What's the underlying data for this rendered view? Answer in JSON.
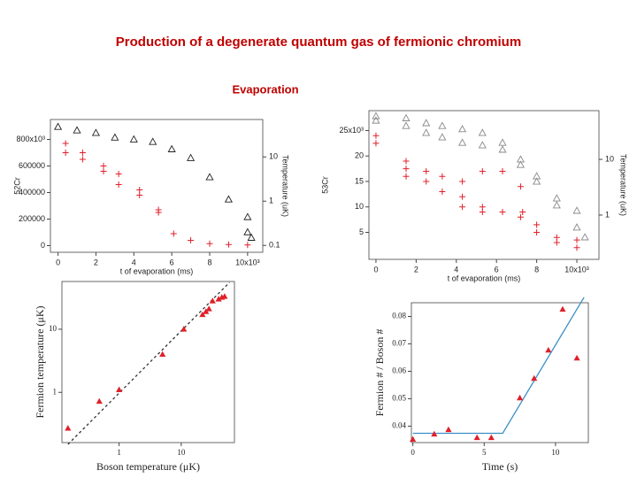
{
  "title": "Production of a degenerate quantum gas of fermionic chromium",
  "subtitle": "Evaporation",
  "chart_data": [
    {
      "type": "scatter",
      "x_label": "t of evaporation (ms)",
      "y_label": "52Cr",
      "y2_label": "Temperature (uK)",
      "xlim": [
        -400,
        10800
      ],
      "ylim": [
        -50000,
        950000
      ],
      "y2lim": [
        0.07,
        70
      ],
      "y2log": true,
      "xticks": [
        0,
        {
          "value": 2000,
          "label": "2"
        },
        {
          "value": 4000,
          "label": "4"
        },
        {
          "value": 6000,
          "label": "6"
        },
        {
          "value": 8000,
          "label": "8"
        },
        {
          "value": 10000,
          "label": "10x10³"
        }
      ],
      "yticks": [
        0,
        200000,
        400000,
        600000,
        {
          "value": 800000,
          "label": "800x10³"
        }
      ],
      "y2ticks": [
        0.1,
        1,
        10
      ],
      "series": [
        {
          "marker": "plus",
          "color": "#e0202a",
          "x": [
            400,
            400,
            1300,
            1300,
            2400,
            2400,
            3200,
            3200,
            4300,
            4300,
            5300,
            5300,
            6100,
            7000,
            8000,
            9000,
            10000
          ],
          "values": [
            770000,
            700000,
            700000,
            650000,
            600000,
            560000,
            540000,
            460000,
            420000,
            380000,
            270000,
            250000,
            90000,
            40000,
            15000,
            8000,
            5000
          ]
        },
        {
          "marker": "triangle",
          "color": "#222222",
          "axis": "y2",
          "x": [
            0,
            1000,
            2000,
            3000,
            4000,
            5000,
            6000,
            7000,
            8000,
            9000,
            10000,
            10000,
            10200
          ],
          "values": [
            48,
            40,
            35,
            27.5,
            25,
            22,
            15,
            9.5,
            3.5,
            1.1,
            0.44,
            0.2,
            0.15
          ]
        }
      ]
    },
    {
      "type": "scatter",
      "x_label": "t of evaporation (ms)",
      "y_label": "53Cr",
      "y2_label": "Temperature (uK)",
      "xlim": [
        -350,
        11100
      ],
      "ylim": [
        -300,
        28900
      ],
      "y2lim": [
        0.16,
        75
      ],
      "y2log": true,
      "xticks": [
        0,
        {
          "value": 2000,
          "label": "2"
        },
        {
          "value": 4000,
          "label": "4"
        },
        {
          "value": 6000,
          "label": "6"
        },
        {
          "value": 8000,
          "label": "8"
        },
        {
          "value": 10000,
          "label": "10x10³"
        }
      ],
      "yticks": [
        {
          "value": 5000,
          "label": "5"
        },
        {
          "value": 10000,
          "label": "10"
        },
        {
          "value": 15000,
          "label": "15"
        },
        {
          "value": 20000,
          "label": "20"
        },
        {
          "value": 25000,
          "label": "25x10³"
        }
      ],
      "y2ticks": [
        1,
        10
      ],
      "series": [
        {
          "marker": "plus",
          "color": "#e0202a",
          "x": [
            0,
            0,
            1500,
            1500,
            1500,
            2500,
            2500,
            3300,
            3300,
            4300,
            4300,
            4300,
            5300,
            5300,
            5300,
            6300,
            6300,
            7200,
            7200,
            7300,
            8000,
            8000,
            9000,
            9000,
            10000,
            10000
          ],
          "values": [
            22500,
            24000,
            19000,
            17500,
            16000,
            17000,
            15000,
            13000,
            16000,
            15000,
            12000,
            10000,
            17000,
            10000,
            9000,
            17000,
            9000,
            14000,
            8000,
            9000,
            6500,
            5000,
            4000,
            3000,
            3500,
            2000
          ]
        },
        {
          "marker": "triangle",
          "color": "#888888",
          "axis": "y2",
          "x": [
            0,
            0,
            1500,
            1500,
            2500,
            2500,
            3300,
            3300,
            4300,
            4300,
            5300,
            5300,
            6300,
            6300,
            7200,
            7200,
            8000,
            8000,
            9000,
            9000,
            10000,
            10000,
            10400
          ],
          "values": [
            60,
            50,
            55,
            40,
            45,
            30,
            40,
            25,
            35,
            20,
            30,
            18,
            20,
            15,
            10,
            8,
            5,
            4,
            2,
            1.5,
            1.2,
            0.6,
            0.4
          ]
        }
      ]
    },
    {
      "type": "scatter",
      "x_label": "Boson temperature (μK)",
      "y_label": "Fermion temperature (μK)",
      "xlim": [
        0.12,
        72
      ],
      "ylim": [
        0.16,
        57
      ],
      "xlog": true,
      "ylog": true,
      "xticks": [
        1,
        10
      ],
      "yticks": [
        1,
        10
      ],
      "series": [
        {
          "marker": "line",
          "dash": true,
          "color": "#333333",
          "x": [
            0.15,
            60
          ],
          "values": [
            0.15,
            55
          ]
        },
        {
          "marker": "filled-triangle",
          "color": "#e0202a",
          "x": [
            0.15,
            0.48,
            1,
            5,
            11,
            22,
            25,
            28,
            32,
            40,
            45,
            50
          ],
          "values": [
            0.27,
            0.72,
            1.1,
            4,
            10,
            17,
            19,
            21,
            28,
            30,
            32,
            33
          ]
        }
      ]
    },
    {
      "type": "scatter",
      "x_label": "Time (s)",
      "y_label": "Fermion # / Boson #",
      "xlim": [
        -0.1,
        12.3
      ],
      "ylim": [
        0.034,
        0.085
      ],
      "xticks": [
        0,
        5,
        10
      ],
      "yticks": [
        0.04,
        0.05,
        0.06,
        0.07,
        0.08
      ],
      "series": [
        {
          "marker": "line",
          "color": "#3a8fc8",
          "x": [
            0,
            6.3,
            12
          ],
          "values": [
            0.0374,
            0.0374,
            0.087
          ]
        },
        {
          "marker": "filled-triangle",
          "color": "#e0202a",
          "x": [
            0,
            1.5,
            2.5,
            4.5,
            5.5,
            7.5,
            8.5,
            9.5,
            10.5,
            11.5
          ],
          "values": [
            0.0352,
            0.0371,
            0.0387,
            0.0358,
            0.0358,
            0.0503,
            0.0574,
            0.0677,
            0.0826,
            0.0648
          ]
        }
      ]
    }
  ]
}
